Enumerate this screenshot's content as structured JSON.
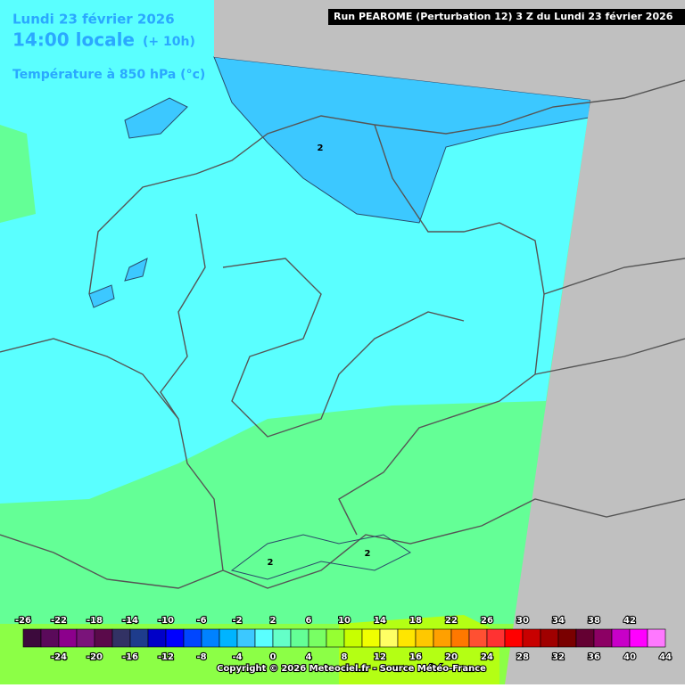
{
  "header": {
    "date": "Lundi 23 février 2026",
    "time": "14:00 locale",
    "lead": "(+ 10h)",
    "field": "Température à 850 hPa (°c)",
    "run": "Run PEAROME (Perturbation 12) 3 Z du Lundi 23 février 2026"
  },
  "contour_labels": [
    "2",
    "2",
    "2"
  ],
  "legend": {
    "labels": [
      -26,
      -24,
      -22,
      -20,
      -18,
      -16,
      -14,
      -12,
      -10,
      -8,
      -6,
      -4,
      -2,
      0,
      2,
      4,
      6,
      8,
      10,
      12,
      14,
      16,
      18,
      20,
      22,
      24,
      26,
      28,
      30,
      32,
      34,
      36,
      38,
      40,
      42,
      44
    ],
    "colors": [
      "#3c0a3c",
      "#5a0a5a",
      "#8c008c",
      "#7a147a",
      "#5a0a4a",
      "#323264",
      "#1e3c8c",
      "#0000c8",
      "#0000ff",
      "#0046ff",
      "#0082ff",
      "#00b4ff",
      "#3cc8ff",
      "#5affff",
      "#64ffc8",
      "#64ff96",
      "#78ff64",
      "#96ff32",
      "#c8ff00",
      "#f0ff00",
      "#ffff64",
      "#ffe600",
      "#ffc800",
      "#ffa000",
      "#ff7800",
      "#ff5032",
      "#ff3232",
      "#ff0000",
      "#c80000",
      "#a00000",
      "#7a0000",
      "#640032",
      "#8c0064",
      "#c800c8",
      "#ff00ff",
      "#ff78ff"
    ]
  },
  "footer": {
    "copyright": "Copyright © 2026 Meteociel.fr - Source Météo-France"
  }
}
